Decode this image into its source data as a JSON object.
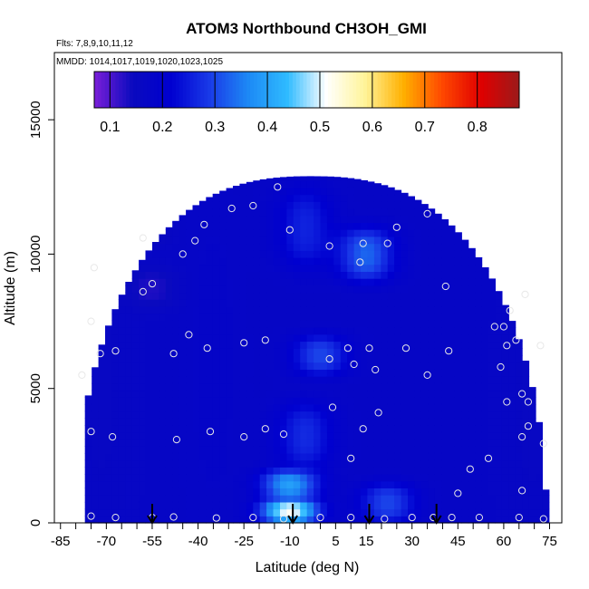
{
  "chart_data": {
    "type": "heatmap",
    "title": "ATOM3 Northbound CH3OH_GMI",
    "subtitle_flights": "Flts: 7,8,9,10,11,12",
    "subtitle_dates": "MMDD: 1014,1017,1019,1020,1023,1025",
    "xlabel": "Latitude (deg N)",
    "ylabel": "Altitude (m)",
    "xlim": [
      -87,
      79
    ],
    "ylim": [
      0,
      17500
    ],
    "x_ticks": [
      -85,
      -70,
      -55,
      -40,
      -25,
      -10,
      5,
      15,
      30,
      45,
      60,
      75
    ],
    "y_ticks": [
      0,
      5000,
      10000,
      15000
    ],
    "colorbar": {
      "range": [
        0.07,
        0.88
      ],
      "ticks": [
        0.1,
        0.2,
        0.3,
        0.4,
        0.5,
        0.6,
        0.7,
        0.8
      ],
      "colors": [
        "#7a1fd8",
        "#0a0abf",
        "#0000d0",
        "#1a3be8",
        "#1d8af5",
        "#2fbbff",
        "#ffffff",
        "#fff49a",
        "#ffb000",
        "#ff4800",
        "#e00000",
        "#9c1a1a"
      ]
    },
    "field": [
      {
        "lat": -72,
        "alt_range": [
          0,
          10700
        ],
        "value": 0.16
      },
      {
        "lat": -55,
        "alt_range": [
          8000,
          9500
        ],
        "value": 0.13
      },
      {
        "lat": -62,
        "alt_range": [
          10400,
          11000
        ],
        "value": 0.11
      },
      {
        "lat": -35,
        "alt_range": [
          0,
          12000
        ],
        "value": 0.18
      },
      {
        "lat": -10,
        "alt_range": [
          0,
          900
        ],
        "value": 0.52
      },
      {
        "lat": -10,
        "alt_range": [
          900,
          2000
        ],
        "value": 0.4
      },
      {
        "lat": -5,
        "alt_range": [
          2000,
          4500
        ],
        "value": 0.27
      },
      {
        "lat": -5,
        "alt_range": [
          9500,
          12500
        ],
        "value": 0.26
      },
      {
        "lat": 0,
        "alt_range": [
          5500,
          7000
        ],
        "value": 0.3
      },
      {
        "lat": 22,
        "alt_range": [
          0,
          1500
        ],
        "value": 0.3
      },
      {
        "lat": 15,
        "alt_range": [
          9000,
          11000
        ],
        "value": 0.33
      },
      {
        "lat": 50,
        "alt_range": [
          0,
          9500
        ],
        "value": 0.17
      },
      {
        "lat": 70,
        "alt_range": [
          0,
          8500
        ],
        "value": 0.16
      }
    ],
    "samples": [
      {
        "lat": -75,
        "alt": 250
      },
      {
        "lat": -67,
        "alt": 200
      },
      {
        "lat": -55,
        "alt": 200
      },
      {
        "lat": -48,
        "alt": 220
      },
      {
        "lat": -34,
        "alt": 180
      },
      {
        "lat": -22,
        "alt": 200
      },
      {
        "lat": -12,
        "alt": 150
      },
      {
        "lat": 0,
        "alt": 200
      },
      {
        "lat": 10,
        "alt": 200
      },
      {
        "lat": 21,
        "alt": 150
      },
      {
        "lat": 30,
        "alt": 200
      },
      {
        "lat": 37,
        "alt": 200
      },
      {
        "lat": 43,
        "alt": 200
      },
      {
        "lat": 52,
        "alt": 200
      },
      {
        "lat": 65,
        "alt": 200
      },
      {
        "lat": 73,
        "alt": 150
      },
      {
        "lat": -75,
        "alt": 3400
      },
      {
        "lat": -68,
        "alt": 3200
      },
      {
        "lat": -47,
        "alt": 3100
      },
      {
        "lat": -36,
        "alt": 3400
      },
      {
        "lat": -25,
        "alt": 3200
      },
      {
        "lat": -18,
        "alt": 3500
      },
      {
        "lat": -12,
        "alt": 3300
      },
      {
        "lat": 14,
        "alt": 3500
      },
      {
        "lat": 19,
        "alt": 4100
      },
      {
        "lat": 4,
        "alt": 4300
      },
      {
        "lat": 10,
        "alt": 2400
      },
      {
        "lat": 49,
        "alt": 2000
      },
      {
        "lat": 55,
        "alt": 2400
      },
      {
        "lat": 45,
        "alt": 1100
      },
      {
        "lat": 66,
        "alt": 1200
      },
      {
        "lat": 66,
        "alt": 3200
      },
      {
        "lat": 68,
        "alt": 3600
      },
      {
        "lat": 68,
        "alt": 4500
      },
      {
        "lat": 73,
        "alt": 2950
      },
      {
        "lat": -78,
        "alt": 5500
      },
      {
        "lat": -72,
        "alt": 6300
      },
      {
        "lat": -67,
        "alt": 6400
      },
      {
        "lat": -48,
        "alt": 6300
      },
      {
        "lat": -37,
        "alt": 6500
      },
      {
        "lat": -25,
        "alt": 6700
      },
      {
        "lat": -18,
        "alt": 6800
      },
      {
        "lat": 3,
        "alt": 6100
      },
      {
        "lat": 9,
        "alt": 6500
      },
      {
        "lat": 11,
        "alt": 5900
      },
      {
        "lat": 16,
        "alt": 6500
      },
      {
        "lat": 18,
        "alt": 5700
      },
      {
        "lat": 28,
        "alt": 6500
      },
      {
        "lat": 35,
        "alt": 5500
      },
      {
        "lat": 42,
        "alt": 6400
      },
      {
        "lat": 59,
        "alt": 5800
      },
      {
        "lat": 60,
        "alt": 7300
      },
      {
        "lat": 61,
        "alt": 6600
      },
      {
        "lat": 64,
        "alt": 6800
      },
      {
        "lat": 72,
        "alt": 6600
      },
      {
        "lat": 66,
        "alt": 4800
      },
      {
        "lat": 61,
        "alt": 4500
      },
      {
        "lat": 62,
        "alt": 7900
      },
      {
        "lat": -75,
        "alt": 7500
      },
      {
        "lat": -43,
        "alt": 7000
      },
      {
        "lat": -74,
        "alt": 9500
      },
      {
        "lat": -58,
        "alt": 8600
      },
      {
        "lat": -55,
        "alt": 8900
      },
      {
        "lat": -45,
        "alt": 10000
      },
      {
        "lat": -41,
        "alt": 10500
      },
      {
        "lat": 41,
        "alt": 8800
      },
      {
        "lat": 57,
        "alt": 7300
      },
      {
        "lat": 67,
        "alt": 8500
      },
      {
        "lat": 13,
        "alt": 9700
      },
      {
        "lat": 3,
        "alt": 10300
      },
      {
        "lat": 14,
        "alt": 10400
      },
      {
        "lat": 22,
        "alt": 10400
      },
      {
        "lat": -58,
        "alt": 10600
      },
      {
        "lat": -38,
        "alt": 11100
      },
      {
        "lat": -10,
        "alt": 10900
      },
      {
        "lat": 25,
        "alt": 11000
      },
      {
        "lat": -29,
        "alt": 11700
      },
      {
        "lat": -22,
        "alt": 11800
      },
      {
        "lat": 35,
        "alt": 11500
      },
      {
        "lat": -14,
        "alt": 12500
      }
    ],
    "markers": [
      {
        "lat": -55,
        "label": "arrow"
      },
      {
        "lat": -9,
        "label": "arrow"
      },
      {
        "lat": 16,
        "label": "arrow"
      },
      {
        "lat": 38,
        "label": "arrow"
      }
    ],
    "grid": false
  }
}
